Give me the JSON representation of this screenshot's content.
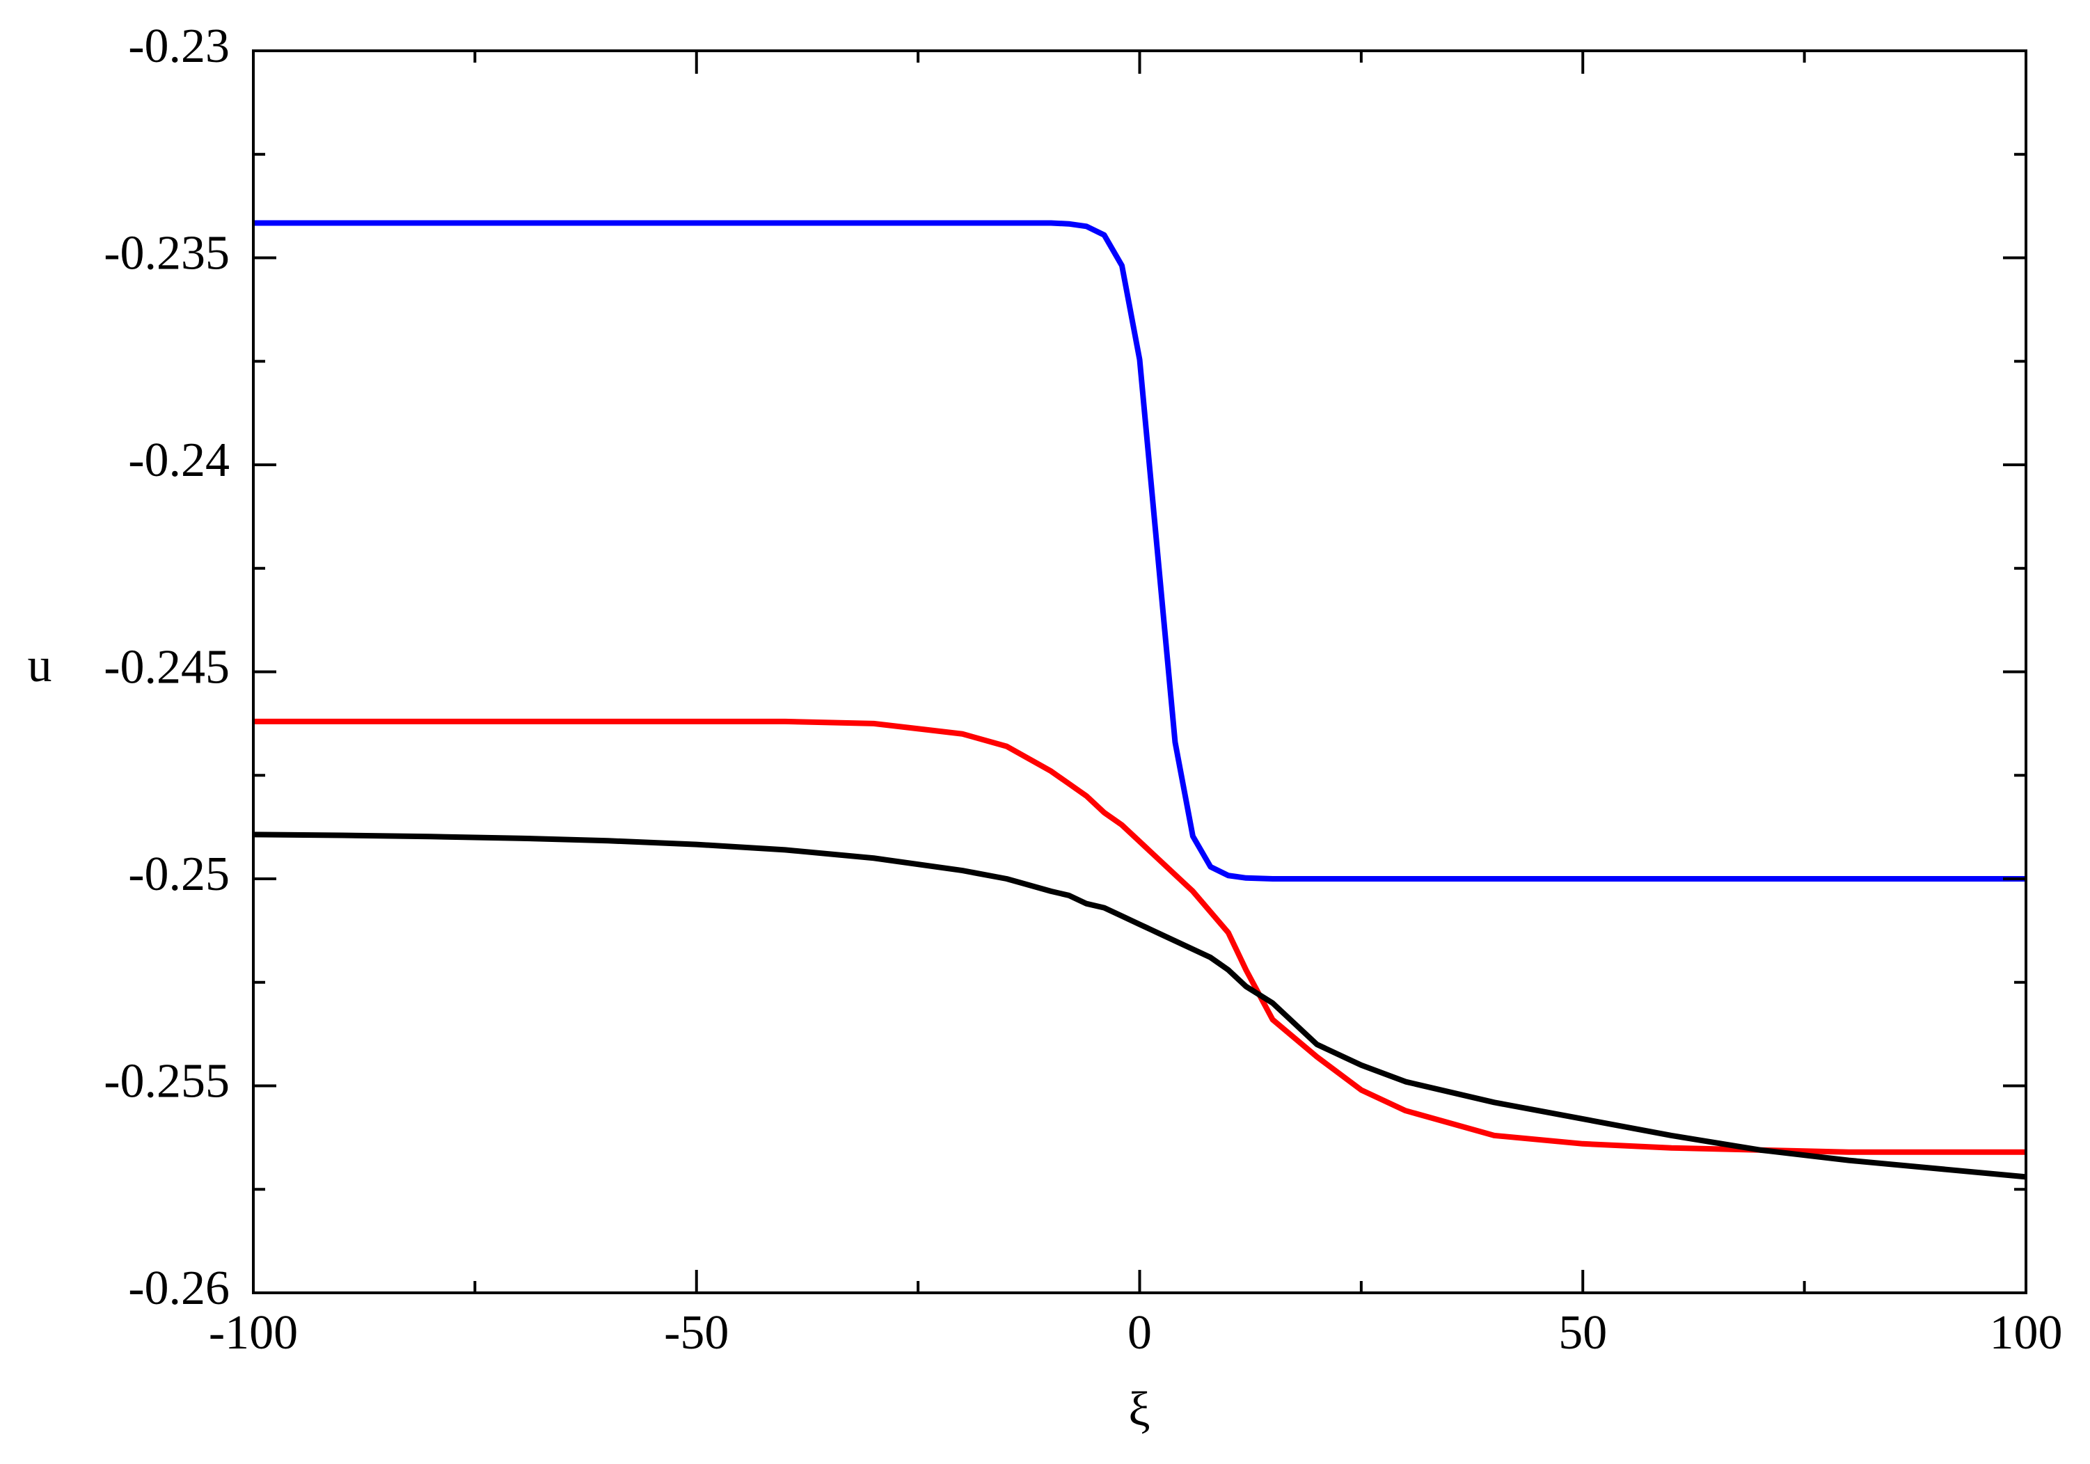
{
  "chart_data": {
    "type": "line",
    "xlabel": "ξ",
    "ylabel": "u",
    "x": [
      -100,
      -90,
      -80,
      -70,
      -60,
      -50,
      -40,
      -30,
      -20,
      -15,
      -10,
      -8,
      -6,
      -4,
      -2,
      0,
      2,
      4,
      6,
      8,
      10,
      12,
      15,
      20,
      25,
      30,
      40,
      50,
      60,
      70,
      80,
      90,
      100
    ],
    "series": [
      {
        "color": "#0000ff",
        "values": [
          -0.23416,
          -0.23416,
          -0.23416,
          -0.23416,
          -0.23416,
          -0.23416,
          -0.23416,
          -0.23416,
          -0.23416,
          -0.23416,
          -0.23416,
          -0.23418,
          -0.23424,
          -0.23445,
          -0.23519,
          -0.23746,
          -0.24208,
          -0.2467,
          -0.24897,
          -0.24971,
          -0.24992,
          -0.24998,
          -0.25,
          -0.25,
          -0.25,
          -0.25,
          -0.25,
          -0.25,
          -0.25,
          -0.25,
          -0.25,
          -0.25,
          -0.25
        ]
      },
      {
        "color": "#ff0000",
        "values": [
          -0.2462,
          -0.2462,
          -0.2462,
          -0.2462,
          -0.2462,
          -0.2462,
          -0.2462,
          -0.24625,
          -0.2465,
          -0.2468,
          -0.2474,
          -0.2477,
          -0.248,
          -0.2484,
          -0.2487,
          -0.2491,
          -0.2495,
          -0.2499,
          -0.2503,
          -0.2508,
          -0.2513,
          -0.2522,
          -0.2534,
          -0.2543,
          -0.2551,
          -0.2556,
          -0.2562,
          -0.2564,
          -0.2565,
          -0.25655,
          -0.2566,
          -0.2566,
          -0.2566
        ]
      },
      {
        "color": "#000000",
        "values": [
          -0.24893,
          -0.24895,
          -0.24898,
          -0.24902,
          -0.24908,
          -0.24917,
          -0.2493,
          -0.2495,
          -0.2498,
          -0.25,
          -0.2503,
          -0.2504,
          -0.2506,
          -0.2507,
          -0.2509,
          -0.2511,
          -0.2513,
          -0.2515,
          -0.2517,
          -0.2519,
          -0.2522,
          -0.2526,
          -0.253,
          -0.254,
          -0.2545,
          -0.2549,
          -0.2554,
          -0.2558,
          -0.2562,
          -0.25655,
          -0.2568,
          -0.257,
          -0.2572
        ]
      }
    ],
    "xlim": [
      -100,
      100
    ],
    "xticks": [
      -100,
      -50,
      0,
      50,
      100
    ],
    "xminorticks": [
      -75,
      -25,
      25,
      75
    ],
    "ylim": [
      -0.26,
      -0.23
    ],
    "yticks": [
      -0.26,
      -0.255,
      -0.25,
      -0.245,
      -0.24,
      -0.235,
      -0.23
    ],
    "yminorticks": [
      -0.2575,
      -0.2525,
      -0.2475,
      -0.2425,
      -0.2375,
      -0.2325
    ]
  }
}
